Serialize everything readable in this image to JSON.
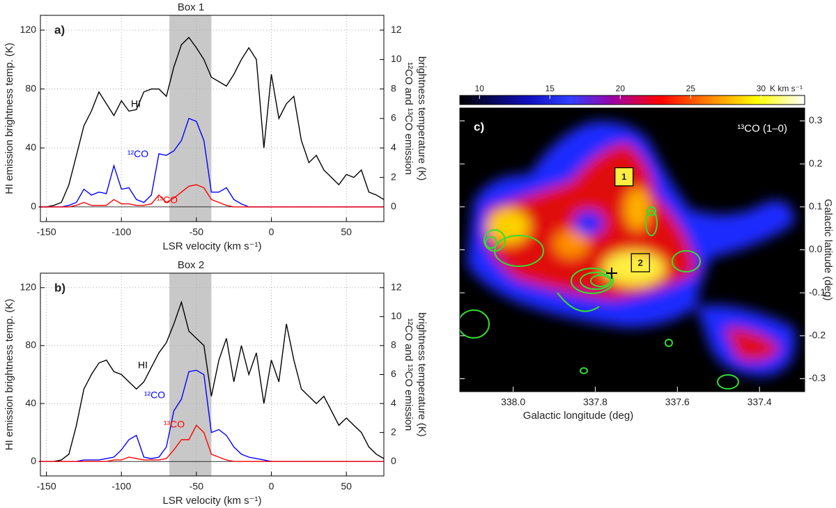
{
  "chart_data": [
    {
      "type": "line",
      "panel": "a)",
      "title": "Box 1",
      "xlabel": "LSR velocity (km s⁻¹)",
      "ylabel": "HI emission brightness temp. (K)",
      "y2label": [
        "¹²CO and ¹³CO emission",
        "brightness temperature (K)"
      ],
      "x": [
        -155,
        -150,
        -145,
        -140,
        -135,
        -130,
        -125,
        -120,
        -115,
        -110,
        -105,
        -100,
        -95,
        -90,
        -85,
        -80,
        -75,
        -70,
        -65,
        -60,
        -55,
        -50,
        -45,
        -40,
        -35,
        -30,
        -25,
        -20,
        -15,
        -10,
        -5,
        0,
        5,
        10,
        15,
        20,
        25,
        30,
        35,
        40,
        45,
        50,
        55,
        60,
        65,
        70,
        75
      ],
      "xlim": [
        -154,
        75
      ],
      "xticks": [
        -150,
        -100,
        -50,
        0,
        50
      ],
      "ylim": [
        -10,
        130
      ],
      "yticks": [
        0,
        40,
        80,
        120
      ],
      "y2lim": [
        -1,
        13
      ],
      "y2ticks": [
        0,
        2,
        4,
        6,
        8,
        10,
        12
      ],
      "shaded_range": [
        -68,
        -40
      ],
      "grid": true,
      "series": [
        {
          "name": "HI",
          "color": "#000000",
          "values": [
            0,
            0,
            1,
            3,
            15,
            35,
            55,
            65,
            78,
            70,
            62,
            72,
            65,
            66,
            78,
            80,
            80,
            75,
            95,
            110,
            115,
            108,
            100,
            88,
            85,
            82,
            90,
            100,
            108,
            100,
            40,
            90,
            60,
            70,
            75,
            45,
            30,
            35,
            25,
            20,
            15,
            22,
            20,
            25,
            10,
            8,
            5
          ]
        },
        {
          "name": "¹²CO",
          "color": "#0000ff",
          "axis": "y2",
          "values": [
            0,
            0,
            0,
            0,
            0.1,
            0.3,
            1.2,
            0.8,
            1.0,
            0.9,
            2.8,
            1.2,
            1.3,
            0.5,
            0.3,
            0.8,
            3.6,
            3.5,
            3.8,
            4.5,
            6.0,
            5.8,
            4.5,
            1.0,
            1.0,
            1.3,
            0.5,
            0.2,
            0,
            0,
            0,
            0,
            0,
            0,
            0,
            0,
            0,
            0,
            0,
            0,
            0,
            0,
            0,
            0,
            0,
            0,
            0
          ]
        },
        {
          "name": "¹³CO",
          "color": "#ff0000",
          "axis": "y2",
          "values": [
            0,
            0,
            0,
            0,
            0,
            0.1,
            0.3,
            0.1,
            0.1,
            0.1,
            0.5,
            0.2,
            0.2,
            0.1,
            0.1,
            0.2,
            0.8,
            0.3,
            0.6,
            1.0,
            1.4,
            1.5,
            1.3,
            0.5,
            0.3,
            0.1,
            0,
            0,
            0,
            0,
            0,
            0,
            0,
            0,
            0,
            0,
            0,
            0,
            0,
            0,
            0,
            0,
            0,
            0,
            0,
            0,
            0
          ]
        }
      ]
    },
    {
      "type": "line",
      "panel": "b)",
      "title": "Box 2",
      "xlabel": "LSR velocity (km s⁻¹)",
      "ylabel": "HI emission brightness temp. (K)",
      "y2label": [
        "¹²CO and ¹³CO emission",
        "brightness temperature (K)"
      ],
      "x": [
        -155,
        -150,
        -145,
        -140,
        -135,
        -130,
        -125,
        -120,
        -115,
        -110,
        -105,
        -100,
        -95,
        -90,
        -85,
        -80,
        -75,
        -70,
        -65,
        -60,
        -55,
        -50,
        -45,
        -40,
        -35,
        -30,
        -25,
        -20,
        -15,
        -10,
        -5,
        0,
        5,
        10,
        15,
        20,
        25,
        30,
        35,
        40,
        45,
        50,
        55,
        60,
        65,
        70,
        75
      ],
      "xlim": [
        -154,
        75
      ],
      "xticks": [
        -150,
        -100,
        -50,
        0,
        50
      ],
      "ylim": [
        -10,
        130
      ],
      "yticks": [
        0,
        40,
        80,
        120
      ],
      "y2lim": [
        -1,
        13
      ],
      "y2ticks": [
        0,
        2,
        4,
        6,
        8,
        10,
        12
      ],
      "shaded_range": [
        -68,
        -40
      ],
      "grid": true,
      "series": [
        {
          "name": "HI",
          "color": "#000000",
          "values": [
            0,
            0,
            0,
            1,
            5,
            25,
            50,
            60,
            68,
            70,
            62,
            60,
            55,
            50,
            55,
            65,
            75,
            82,
            95,
            110,
            90,
            85,
            80,
            45,
            70,
            85,
            55,
            80,
            60,
            75,
            40,
            70,
            55,
            95,
            70,
            50,
            45,
            40,
            45,
            35,
            25,
            30,
            25,
            20,
            10,
            5,
            2
          ]
        },
        {
          "name": "¹²CO",
          "color": "#0000ff",
          "axis": "y2",
          "values": [
            0,
            0,
            0,
            0,
            0,
            0,
            0.1,
            0.1,
            0.1,
            0.2,
            0.3,
            0.8,
            1.5,
            1.8,
            0.3,
            0.2,
            0.3,
            1.0,
            3.5,
            4.3,
            6.2,
            6.3,
            6.0,
            2.0,
            2.2,
            1.8,
            1.0,
            0.5,
            0.3,
            0.2,
            0.1,
            0,
            0,
            0,
            0,
            0,
            0,
            0,
            0,
            0,
            0,
            0,
            0,
            0,
            0,
            0,
            0
          ]
        },
        {
          "name": "¹³CO",
          "color": "#ff0000",
          "axis": "y2",
          "values": [
            0,
            0,
            0,
            0,
            0,
            0,
            0,
            0,
            0,
            0,
            0.1,
            0.1,
            0.3,
            0.2,
            0.1,
            0.1,
            0.1,
            0.2,
            0.8,
            1.5,
            1.5,
            2.5,
            2.0,
            0.5,
            0.3,
            0.1,
            0,
            0,
            0,
            0,
            0,
            0,
            0,
            0,
            0,
            0,
            0,
            0,
            0,
            0,
            0,
            0,
            0,
            0,
            0,
            0,
            0
          ]
        }
      ]
    },
    {
      "type": "map",
      "panel": "c)",
      "title": "¹³CO (1–0)",
      "xlabel": "Galactic longitude (deg)",
      "ylabel": "Galactic latitude (deg)",
      "xlim": [
        338.13,
        337.29
      ],
      "xticks": [
        {
          "value": 338,
          "label": "338.0"
        },
        337.8,
        337.6,
        337.4
      ],
      "ylim": [
        -0.33,
        0.33
      ],
      "yticks": [
        0.3,
        0.2,
        0.1,
        {
          "value": 0,
          "label": "0.0"
        },
        -0.1,
        -0.2,
        -0.3
      ],
      "colorbar": {
        "clim": [
          8.6,
          33.1
        ],
        "ticks": [
          10,
          15,
          20,
          25,
          30
        ],
        "label": "K km s⁻¹"
      },
      "markers": [
        {
          "label": "1",
          "lon": 337.73,
          "lat": 0.17
        },
        {
          "label": "2",
          "lon": 337.69,
          "lat": -0.03
        }
      ]
    }
  ]
}
